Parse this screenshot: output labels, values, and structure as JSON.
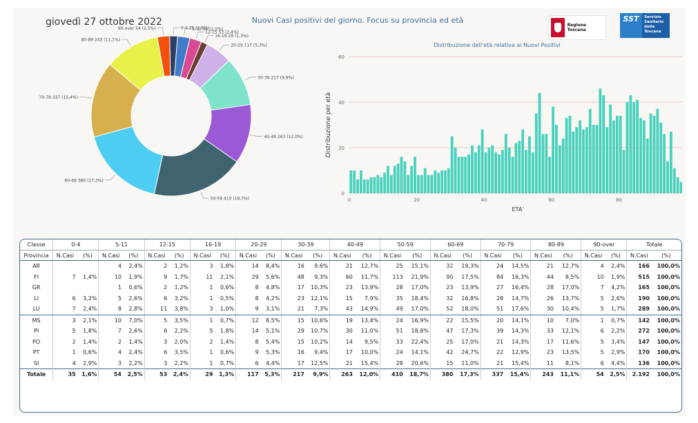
{
  "header": {
    "date": "giovedì 27 ottobre 2022",
    "title": "Nuovi Casi positivi del giorno. Focus su provincia ed età",
    "logo_regione": "Regione Toscana",
    "logo_sst": "SST",
    "logo_sst_text": "Servizio Sanitario della Toscana"
  },
  "colors": {
    "histogram": "#48d1bd",
    "gridline": "#e6b9b3",
    "table_border": "#3f6b8f"
  },
  "chart_data": [
    {
      "type": "pie",
      "donut": true,
      "labels": [
        "0-4 35 (1,6%)",
        "5-11 54 (2,5%)",
        "12-15 53 (2,4%)",
        "16-19 29 (1,3%)",
        "20-29 117 (5,3%)",
        "30-39 217 (9,9%)",
        "40-49 263 (12,0%)",
        "50-59 410 (18,7%)",
        "60-69 380 (17,3%)",
        "70-79 337 (15,4%)",
        "80-89 243 (11,1%)",
        "90-over 54 (2,5%)"
      ],
      "categories": [
        "0-4",
        "5-11",
        "12-15",
        "16-19",
        "20-29",
        "30-39",
        "40-49",
        "50-59",
        "60-69",
        "70-79",
        "80-89",
        "90-over"
      ],
      "values": [
        35,
        54,
        53,
        29,
        117,
        217,
        263,
        410,
        380,
        337,
        243,
        54
      ],
      "colors": [
        "#2a3f66",
        "#3f7bc8",
        "#d84b93",
        "#6b3b35",
        "#cfb0e8",
        "#7fe3c9",
        "#9b59d5",
        "#3f646f",
        "#4dcdf2",
        "#d6b04d",
        "#e8f14a",
        "#f2500e"
      ],
      "colors_order_note": "",
      "legend": "labels outside slices"
    },
    {
      "type": "bar",
      "title": "Distribuzione dell'età relativa ai Nuovi Positivi",
      "xlabel": "ETA'",
      "ylabel": "Distribuzione per età",
      "xlim": [
        0,
        100
      ],
      "ylim": [
        0,
        60
      ],
      "xticks": [
        "0",
        "20",
        "40",
        "60",
        "80",
        "100"
      ],
      "yticks": [
        "0",
        "20",
        "40",
        "60"
      ],
      "grid": "horizontal",
      "values": [
        10,
        10,
        6,
        10,
        6,
        6,
        7,
        7,
        8,
        7,
        9,
        12,
        8,
        12,
        13,
        16,
        14,
        8,
        12,
        16,
        8,
        8,
        11,
        8,
        8,
        10,
        9,
        10,
        10,
        11,
        25,
        20,
        16,
        16,
        16,
        17,
        21,
        18,
        21,
        28,
        18,
        20,
        21,
        18,
        17,
        19,
        26,
        20,
        16,
        22,
        23,
        28,
        19,
        25,
        18,
        35,
        44,
        26,
        26,
        16,
        38,
        30,
        21,
        24,
        33,
        34,
        27,
        29,
        32,
        28,
        29,
        37,
        30,
        30,
        46,
        43,
        29,
        39,
        32,
        34,
        34,
        19,
        40,
        43,
        40,
        41,
        33,
        32,
        24,
        35,
        34,
        37,
        31,
        26,
        14,
        27,
        11,
        7,
        5,
        4,
        2,
        2,
        1,
        1
      ]
    }
  ],
  "pie_labels_text": [
    "0-4 35 (1,6%)",
    "16-19 29 (1,3%)",
    "20-29 117 (5,3%)",
    "30-39 217 (9,9%)",
    "40-49 263 (12,0%)",
    "50-59 410 (18,7%)",
    "60-69 380 (17,3%)",
    "70-79 337 (15,4%)",
    "80-89 243 (11,1%)",
    "90-over 54 (2,5%)"
  ],
  "table": {
    "classe_label": "Classe",
    "provincia_label": "Provincia",
    "totale_label": "Totale",
    "groups": [
      "0-4",
      "5-11",
      "12-15",
      "16-19",
      "20-29",
      "30-39",
      "40-49",
      "50-59",
      "60-69",
      "70-79",
      "80-89",
      "90-over"
    ],
    "col_ncasi": "N.Casi",
    "col_pct": "(%)",
    "rows": [
      {
        "prov": "AR",
        "cells": [
          "",
          "",
          "4",
          "2,4%",
          "2",
          "1,2%",
          "3",
          "1,8%",
          "14",
          "8,4%",
          "16",
          "9,6%",
          "21",
          "12,7%",
          "25",
          "15,1%",
          "32",
          "19,3%",
          "24",
          "14,5%",
          "21",
          "12,7%",
          "4",
          "2,4%"
        ],
        "tot": "166",
        "tot_pct": "100,0%"
      },
      {
        "prov": "FI",
        "cells": [
          "7",
          "1,4%",
          "10",
          "1,9%",
          "9",
          "1,7%",
          "11",
          "2,1%",
          "29",
          "5,6%",
          "48",
          "9,3%",
          "60",
          "11,7%",
          "113",
          "21,9%",
          "90",
          "17,5%",
          "84",
          "16,3%",
          "44",
          "8,5%",
          "10",
          "1,9%"
        ],
        "tot": "515",
        "tot_pct": "100,0%"
      },
      {
        "prov": "GR",
        "cells": [
          "",
          "",
          "1",
          "0,6%",
          "2",
          "1,2%",
          "1",
          "0,6%",
          "8",
          "4,8%",
          "17",
          "10,3%",
          "23",
          "13,9%",
          "28",
          "17,0%",
          "23",
          "13,9%",
          "27",
          "16,4%",
          "28",
          "17,0%",
          "7",
          "4,2%"
        ],
        "tot": "165",
        "tot_pct": "100,0%"
      },
      {
        "prov": "LI",
        "cells": [
          "6",
          "3,2%",
          "5",
          "2,6%",
          "6",
          "3,2%",
          "1",
          "0,5%",
          "8",
          "4,2%",
          "23",
          "12,1%",
          "15",
          "7,9%",
          "35",
          "18,4%",
          "32",
          "16,8%",
          "28",
          "14,7%",
          "26",
          "13,7%",
          "5",
          "2,6%"
        ],
        "tot": "190",
        "tot_pct": "100,0%"
      },
      {
        "prov": "LU",
        "cells": [
          "7",
          "2,4%",
          "8",
          "2,8%",
          "11",
          "3,8%",
          "3",
          "1,0%",
          "9",
          "3,1%",
          "21",
          "7,3%",
          "43",
          "14,9%",
          "49",
          "17,0%",
          "52",
          "18,0%",
          "51",
          "17,6%",
          "30",
          "10,4%",
          "5",
          "1,7%"
        ],
        "tot": "289",
        "tot_pct": "100,0%"
      },
      {
        "prov": "MS",
        "cells": [
          "3",
          "2,1%",
          "10",
          "7,0%",
          "5",
          "3,5%",
          "1",
          "0,7%",
          "12",
          "8,5%",
          "15",
          "10,6%",
          "19",
          "13,4%",
          "24",
          "16,9%",
          "22",
          "15,5%",
          "20",
          "14,1%",
          "10",
          "7,0%",
          "1",
          "0,7%"
        ],
        "tot": "142",
        "tot_pct": "100,0%"
      },
      {
        "prov": "PI",
        "cells": [
          "5",
          "1,8%",
          "7",
          "2,6%",
          "6",
          "2,2%",
          "5",
          "1,8%",
          "14",
          "5,1%",
          "29",
          "10,7%",
          "30",
          "11,0%",
          "51",
          "18,8%",
          "47",
          "17,3%",
          "39",
          "14,3%",
          "33",
          "12,1%",
          "6",
          "2,2%"
        ],
        "tot": "272",
        "tot_pct": "100,0%"
      },
      {
        "prov": "PO",
        "cells": [
          "2",
          "1,4%",
          "2",
          "1,4%",
          "3",
          "2,0%",
          "2",
          "1,4%",
          "8",
          "5,4%",
          "15",
          "10,2%",
          "14",
          "9,5%",
          "33",
          "22,4%",
          "25",
          "17,0%",
          "21",
          "14,3%",
          "17",
          "11,6%",
          "5",
          "3,4%"
        ],
        "tot": "147",
        "tot_pct": "100,0%"
      },
      {
        "prov": "PT",
        "cells": [
          "1",
          "0,6%",
          "4",
          "2,4%",
          "6",
          "3,5%",
          "1",
          "0,6%",
          "9",
          "5,3%",
          "16",
          "9,4%",
          "17",
          "10,0%",
          "24",
          "14,1%",
          "42",
          "24,7%",
          "22",
          "12,9%",
          "23",
          "13,5%",
          "5",
          "2,9%"
        ],
        "tot": "170",
        "tot_pct": "100,0%"
      },
      {
        "prov": "SI",
        "cells": [
          "4",
          "2,9%",
          "3",
          "2,2%",
          "3",
          "2,2%",
          "1",
          "0,7%",
          "6",
          "4,4%",
          "17",
          "12,5%",
          "21",
          "15,4%",
          "28",
          "20,6%",
          "15",
          "11,0%",
          "21",
          "15,4%",
          "11",
          "8,1%",
          "6",
          "4,4%"
        ],
        "tot": "136",
        "tot_pct": "100,0%"
      }
    ],
    "total_row": {
      "prov": "Totale",
      "cells": [
        "35",
        "1,6%",
        "54",
        "2,5%",
        "53",
        "2,4%",
        "29",
        "1,3%",
        "117",
        "5,3%",
        "217",
        "9,9%",
        "263",
        "12,0%",
        "410",
        "18,7%",
        "380",
        "17,3%",
        "337",
        "15,4%",
        "243",
        "11,1%",
        "54",
        "2,5%"
      ],
      "tot": "2.192",
      "tot_pct": "100,0%"
    }
  }
}
